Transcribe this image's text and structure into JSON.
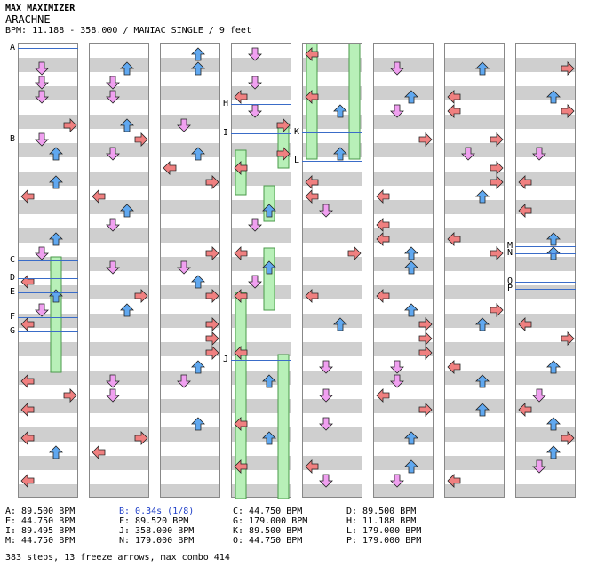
{
  "header": {
    "series": "MAX MAXIMIZER",
    "title": "ARACHNE",
    "info": "BPM: 11.188 - 358.000 / MANIAC SINGLE / 9 feet"
  },
  "colors": {
    "left": "#f08080",
    "down": "#f0a0f0",
    "up": "#60a8f0",
    "right": "#f08080",
    "freeze": "#b8f0b8",
    "marker_line": "#3a6cc8",
    "stop_text": "#2040c8"
  },
  "markers": [
    {
      "label": "A",
      "column": 0
    },
    {
      "label": "B",
      "column": 0
    },
    {
      "label": "C",
      "column": 0
    },
    {
      "label": "D",
      "column": 0
    },
    {
      "label": "E",
      "column": 0
    },
    {
      "label": "F",
      "column": 0
    },
    {
      "label": "G",
      "column": 0
    },
    {
      "label": "H",
      "column": 3
    },
    {
      "label": "I",
      "column": 3
    },
    {
      "label": "J",
      "column": 3
    },
    {
      "label": "K",
      "column": 4
    },
    {
      "label": "L",
      "column": 4
    },
    {
      "label": "M",
      "column": 7
    },
    {
      "label": "N",
      "column": 7
    },
    {
      "label": "O",
      "column": 7
    },
    {
      "label": "P",
      "column": 7
    }
  ],
  "bpm_changes": [
    [
      "A: 89.500 BPM",
      "B: 0.34s (1/8)",
      "C: 44.750 BPM",
      "D: 89.500 BPM"
    ],
    [
      "E: 44.750 BPM",
      "F: 89.520 BPM",
      "G: 179.000 BPM",
      "H: 11.188 BPM"
    ],
    [
      "I: 89.495 BPM",
      "J: 358.000 BPM",
      "K: 89.500 BPM",
      "L: 179.000 BPM"
    ],
    [
      "M: 44.750 BPM",
      "N: 179.000 BPM",
      "O: 44.750 BPM",
      "P: 179.000 BPM"
    ]
  ],
  "summary": "383 steps, 13 freeze arrows, max combo 414"
}
